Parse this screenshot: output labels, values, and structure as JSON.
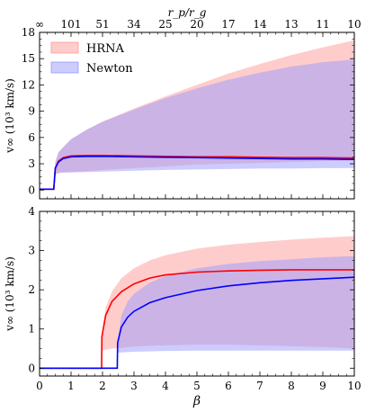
{
  "figure": {
    "top_axis_label": "r_p/r_g",
    "xlabel": "β",
    "legend": {
      "hrna_label": "HRNA",
      "newton_label": "Newton",
      "hrna_color": "#ff9999",
      "newton_color": "#9999ff"
    },
    "top_ticks": [
      {
        "beta": 0,
        "label": "∞"
      },
      {
        "beta": 1,
        "label": "101"
      },
      {
        "beta": 2,
        "label": "51"
      },
      {
        "beta": 3,
        "label": "34"
      },
      {
        "beta": 4,
        "label": "25"
      },
      {
        "beta": 5,
        "label": "20"
      },
      {
        "beta": 6,
        "label": "17"
      },
      {
        "beta": 7,
        "label": "14"
      },
      {
        "beta": 8,
        "label": "13"
      },
      {
        "beta": 9,
        "label": "11"
      },
      {
        "beta": 10,
        "label": "10"
      }
    ]
  },
  "chart_data": [
    {
      "type": "area",
      "panel": "top",
      "ylabel": "v∞ (10³ km/s)",
      "xlim": [
        0,
        10
      ],
      "ylim": [
        -1,
        18
      ],
      "x_ticks": [
        0,
        1,
        2,
        3,
        4,
        5,
        6,
        7,
        8,
        9,
        10
      ],
      "y_ticks": [
        0,
        3,
        6,
        9,
        12,
        15,
        18
      ],
      "x": [
        0,
        0.45,
        0.5,
        0.6,
        0.75,
        1,
        1.5,
        2,
        3,
        4,
        5,
        6,
        7,
        8,
        9,
        10
      ],
      "series": [
        {
          "name": "HRNA",
          "color": "#ff0000",
          "line": [
            0.1,
            0.1,
            2.5,
            3.3,
            3.7,
            3.9,
            3.95,
            3.95,
            3.9,
            3.85,
            3.8,
            3.8,
            3.75,
            3.7,
            3.7,
            3.65
          ],
          "lower": [
            0.1,
            0.1,
            1.8,
            2.0,
            2.0,
            2.05,
            2.15,
            2.3,
            2.5,
            2.7,
            2.9,
            3.0,
            3.1,
            3.2,
            3.3,
            3.35
          ],
          "upper": [
            0.1,
            0.1,
            3.2,
            4.3,
            4.9,
            5.8,
            6.9,
            7.8,
            9.3,
            10.7,
            12.0,
            13.3,
            14.4,
            15.4,
            16.3,
            17.1
          ]
        },
        {
          "name": "Newton",
          "color": "#0000ff",
          "line": [
            0.1,
            0.1,
            2.5,
            3.2,
            3.6,
            3.8,
            3.85,
            3.85,
            3.8,
            3.75,
            3.7,
            3.65,
            3.6,
            3.55,
            3.55,
            3.5
          ],
          "lower": [
            0.1,
            0.1,
            1.8,
            1.9,
            2.0,
            2.0,
            2.05,
            2.1,
            2.2,
            2.3,
            2.35,
            2.4,
            2.45,
            2.45,
            2.5,
            2.5
          ],
          "upper": [
            0.1,
            0.1,
            3.2,
            4.3,
            4.9,
            5.8,
            6.9,
            7.8,
            9.2,
            10.5,
            11.6,
            12.6,
            13.4,
            14.1,
            14.6,
            14.9
          ]
        }
      ]
    },
    {
      "type": "area",
      "panel": "bottom",
      "ylabel": "v∞ (10³ km/s)",
      "xlabel": "β",
      "xlim": [
        0,
        10
      ],
      "ylim": [
        -0.2,
        4
      ],
      "x_ticks": [
        0,
        1,
        2,
        3,
        4,
        5,
        6,
        7,
        8,
        9,
        10
      ],
      "y_ticks": [
        0,
        1,
        2,
        3,
        4
      ],
      "series": [
        {
          "name": "HRNA",
          "color": "#ff0000",
          "x": [
            0,
            1.97,
            1.98,
            2.1,
            2.3,
            2.6,
            3,
            3.5,
            4,
            5,
            6,
            7,
            8,
            9,
            10
          ],
          "line": [
            0,
            0,
            0.8,
            1.35,
            1.7,
            1.95,
            2.15,
            2.3,
            2.38,
            2.45,
            2.48,
            2.5,
            2.51,
            2.51,
            2.51
          ],
          "lower": [
            0,
            0,
            0.45,
            0.47,
            0.5,
            0.52,
            0.55,
            0.57,
            0.58,
            0.6,
            0.6,
            0.58,
            0.56,
            0.54,
            0.5
          ],
          "upper": [
            0,
            0,
            0.8,
            1.55,
            1.95,
            2.3,
            2.55,
            2.75,
            2.88,
            3.05,
            3.15,
            3.22,
            3.28,
            3.33,
            3.37
          ]
        },
        {
          "name": "Newton",
          "color": "#0000ff",
          "x": [
            0,
            2.47,
            2.48,
            2.6,
            2.8,
            3,
            3.5,
            4,
            5,
            6,
            7,
            8,
            9,
            10
          ],
          "line": [
            0,
            0,
            0.65,
            1.05,
            1.3,
            1.45,
            1.67,
            1.8,
            1.98,
            2.1,
            2.18,
            2.24,
            2.28,
            2.32
          ],
          "lower": [
            0,
            0,
            0.4,
            0.4,
            0.41,
            0.42,
            0.43,
            0.44,
            0.45,
            0.45,
            0.45,
            0.45,
            0.45,
            0.45
          ],
          "upper": [
            0,
            0,
            0.65,
            1.35,
            1.7,
            1.9,
            2.18,
            2.35,
            2.55,
            2.66,
            2.73,
            2.78,
            2.83,
            2.86
          ]
        }
      ]
    }
  ]
}
